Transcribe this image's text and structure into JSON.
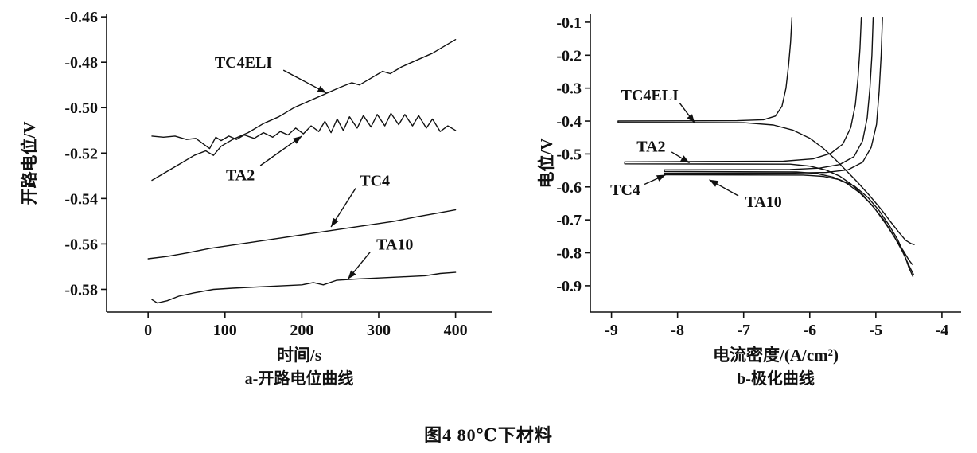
{
  "figure": {
    "caption": "图4  80℃下材料"
  },
  "chart_data": [
    {
      "type": "line",
      "title": "a-开路电位曲线",
      "xlabel": "时间/s",
      "ylabel": "开路电位/V",
      "xlim": [
        -54,
        447
      ],
      "ylim": [
        -0.59,
        -0.4589
      ],
      "xticks": [
        0,
        100,
        200,
        300,
        400
      ],
      "xtick_labels": [
        "0",
        "100",
        "200",
        "300",
        "400"
      ],
      "yticks": [
        -0.46,
        -0.48,
        -0.5,
        -0.52,
        -0.54,
        -0.56,
        -0.58
      ],
      "ytick_labels": [
        "-0.46",
        "-0.48",
        "-0.50",
        "-0.52",
        "-0.54",
        "-0.56",
        "-0.58"
      ],
      "grid": false,
      "legend": "none (inline arrow annotations)",
      "series": [
        {
          "name": "TC4ELI",
          "points": [
            [
              5,
              -0.532
            ],
            [
              20,
              -0.529
            ],
            [
              40,
              -0.525
            ],
            [
              60,
              -0.521
            ],
            [
              75,
              -0.519
            ],
            [
              85,
              -0.521
            ],
            [
              95,
              -0.517
            ],
            [
              110,
              -0.514
            ],
            [
              130,
              -0.511
            ],
            [
              150,
              -0.507
            ],
            [
              170,
              -0.504
            ],
            [
              190,
              -0.5
            ],
            [
              210,
              -0.497
            ],
            [
              230,
              -0.494
            ],
            [
              250,
              -0.491
            ],
            [
              265,
              -0.489
            ],
            [
              275,
              -0.49
            ],
            [
              290,
              -0.487
            ],
            [
              305,
              -0.484
            ],
            [
              315,
              -0.485
            ],
            [
              330,
              -0.482
            ],
            [
              350,
              -0.479
            ],
            [
              370,
              -0.476
            ],
            [
              385,
              -0.473
            ],
            [
              400,
              -0.47
            ]
          ]
        },
        {
          "name": "TA2",
          "points": [
            [
              5,
              -0.5125
            ],
            [
              20,
              -0.513
            ],
            [
              35,
              -0.5125
            ],
            [
              50,
              -0.514
            ],
            [
              62,
              -0.5135
            ],
            [
              72,
              -0.516
            ],
            [
              80,
              -0.518
            ],
            [
              88,
              -0.513
            ],
            [
              95,
              -0.5145
            ],
            [
              105,
              -0.5125
            ],
            [
              115,
              -0.514
            ],
            [
              125,
              -0.512
            ],
            [
              138,
              -0.5135
            ],
            [
              150,
              -0.511
            ],
            [
              162,
              -0.513
            ],
            [
              172,
              -0.5105
            ],
            [
              182,
              -0.512
            ],
            [
              192,
              -0.509
            ],
            [
              202,
              -0.5115
            ],
            [
              212,
              -0.508
            ],
            [
              222,
              -0.5105
            ],
            [
              230,
              -0.506
            ],
            [
              238,
              -0.511
            ],
            [
              246,
              -0.505
            ],
            [
              254,
              -0.51
            ],
            [
              262,
              -0.504
            ],
            [
              272,
              -0.509
            ],
            [
              280,
              -0.5035
            ],
            [
              290,
              -0.5085
            ],
            [
              298,
              -0.503
            ],
            [
              308,
              -0.508
            ],
            [
              316,
              -0.5025
            ],
            [
              326,
              -0.5075
            ],
            [
              334,
              -0.503
            ],
            [
              344,
              -0.508
            ],
            [
              352,
              -0.5035
            ],
            [
              362,
              -0.509
            ],
            [
              370,
              -0.505
            ],
            [
              380,
              -0.5105
            ],
            [
              390,
              -0.508
            ],
            [
              400,
              -0.51
            ]
          ]
        },
        {
          "name": "TC4",
          "points": [
            [
              0,
              -0.5665
            ],
            [
              25,
              -0.5655
            ],
            [
              50,
              -0.564
            ],
            [
              80,
              -0.562
            ],
            [
              110,
              -0.5605
            ],
            [
              140,
              -0.559
            ],
            [
              170,
              -0.5575
            ],
            [
              200,
              -0.556
            ],
            [
              230,
              -0.5545
            ],
            [
              260,
              -0.553
            ],
            [
              290,
              -0.5515
            ],
            [
              320,
              -0.55
            ],
            [
              350,
              -0.548
            ],
            [
              375,
              -0.5465
            ],
            [
              400,
              -0.545
            ]
          ]
        },
        {
          "name": "TA10",
          "points": [
            [
              5,
              -0.5845
            ],
            [
              12,
              -0.586
            ],
            [
              25,
              -0.585
            ],
            [
              40,
              -0.583
            ],
            [
              60,
              -0.5815
            ],
            [
              85,
              -0.58
            ],
            [
              110,
              -0.5795
            ],
            [
              140,
              -0.579
            ],
            [
              170,
              -0.5785
            ],
            [
              200,
              -0.578
            ],
            [
              215,
              -0.577
            ],
            [
              228,
              -0.578
            ],
            [
              245,
              -0.576
            ],
            [
              270,
              -0.5755
            ],
            [
              300,
              -0.575
            ],
            [
              330,
              -0.5745
            ],
            [
              360,
              -0.574
            ],
            [
              380,
              -0.573
            ],
            [
              400,
              -0.5725
            ]
          ]
        }
      ],
      "annotations": [
        {
          "text": "TC4ELI",
          "label": [
            124,
            -0.48
          ],
          "from": [
            176,
            -0.4835
          ],
          "to": [
            232,
            -0.4935
          ]
        },
        {
          "text": "TA2",
          "label": [
            120,
            -0.5295
          ],
          "from": [
            146,
            -0.5255
          ],
          "to": [
            200,
            -0.5125
          ]
        },
        {
          "text": "TC4",
          "label": [
            295,
            -0.532
          ],
          "from": [
            270,
            -0.5355
          ],
          "to": [
            238,
            -0.5525
          ]
        },
        {
          "text": "TA10",
          "label": [
            321,
            -0.56
          ],
          "from": [
            289,
            -0.5635
          ],
          "to": [
            260,
            -0.5755
          ]
        }
      ]
    },
    {
      "type": "line",
      "title": "b-极化曲线",
      "xlabel": "电流密度/(A/cm²)",
      "ylabel": "电位/V",
      "xlim": [
        -9.32,
        -3.71
      ],
      "ylim": [
        -0.98,
        -0.076
      ],
      "xticks": [
        -9,
        -8,
        -7,
        -6,
        -5,
        -4
      ],
      "xtick_labels": [
        "-9",
        "-8",
        "-7",
        "-6",
        "-5",
        "-4"
      ],
      "yticks": [
        -0.1,
        -0.2,
        -0.3,
        -0.4,
        -0.5,
        -0.6,
        -0.7,
        -0.8,
        -0.9
      ],
      "ytick_labels": [
        "-0.1",
        "-0.2",
        "-0.3",
        "-0.4",
        "-0.5",
        "-0.6",
        "-0.7",
        "-0.8",
        "-0.9"
      ],
      "grid": false,
      "legend": "none (inline arrow annotations)",
      "series": [
        {
          "name": "TC4ELI",
          "points": [
            [
              -6.27,
              -0.085
            ],
            [
              -6.29,
              -0.16
            ],
            [
              -6.32,
              -0.23
            ],
            [
              -6.36,
              -0.3
            ],
            [
              -6.42,
              -0.355
            ],
            [
              -6.52,
              -0.385
            ],
            [
              -6.7,
              -0.396
            ],
            [
              -7.1,
              -0.399
            ],
            [
              -8.9,
              -0.4
            ],
            [
              -8.9,
              -0.404
            ],
            [
              -7.0,
              -0.405
            ],
            [
              -6.55,
              -0.412
            ],
            [
              -6.25,
              -0.428
            ],
            [
              -6.0,
              -0.452
            ],
            [
              -5.8,
              -0.482
            ],
            [
              -5.62,
              -0.515
            ],
            [
              -5.45,
              -0.55
            ],
            [
              -5.28,
              -0.585
            ],
            [
              -5.1,
              -0.625
            ],
            [
              -4.92,
              -0.668
            ],
            [
              -4.78,
              -0.705
            ],
            [
              -4.65,
              -0.738
            ],
            [
              -4.55,
              -0.762
            ],
            [
              -4.47,
              -0.772
            ],
            [
              -4.42,
              -0.775
            ]
          ]
        },
        {
          "name": "TA2",
          "points": [
            [
              -5.22,
              -0.085
            ],
            [
              -5.24,
              -0.18
            ],
            [
              -5.27,
              -0.27
            ],
            [
              -5.31,
              -0.35
            ],
            [
              -5.38,
              -0.42
            ],
            [
              -5.5,
              -0.47
            ],
            [
              -5.68,
              -0.498
            ],
            [
              -5.95,
              -0.515
            ],
            [
              -6.4,
              -0.522
            ],
            [
              -8.8,
              -0.524
            ],
            [
              -8.8,
              -0.53
            ],
            [
              -6.3,
              -0.531
            ],
            [
              -6.0,
              -0.537
            ],
            [
              -5.75,
              -0.549
            ],
            [
              -5.55,
              -0.567
            ],
            [
              -5.37,
              -0.592
            ],
            [
              -5.18,
              -0.628
            ],
            [
              -5.0,
              -0.67
            ],
            [
              -4.84,
              -0.715
            ],
            [
              -4.7,
              -0.758
            ],
            [
              -4.58,
              -0.795
            ],
            [
              -4.5,
              -0.822
            ],
            [
              -4.45,
              -0.835
            ]
          ]
        },
        {
          "name": "TC4",
          "points": [
            [
              -5.04,
              -0.085
            ],
            [
              -5.06,
              -0.2
            ],
            [
              -5.09,
              -0.3
            ],
            [
              -5.13,
              -0.39
            ],
            [
              -5.2,
              -0.46
            ],
            [
              -5.33,
              -0.508
            ],
            [
              -5.55,
              -0.532
            ],
            [
              -5.85,
              -0.543
            ],
            [
              -6.3,
              -0.547
            ],
            [
              -8.2,
              -0.548
            ],
            [
              -8.2,
              -0.553
            ],
            [
              -6.2,
              -0.5545
            ],
            [
              -5.9,
              -0.559
            ],
            [
              -5.65,
              -0.57
            ],
            [
              -5.45,
              -0.588
            ],
            [
              -5.25,
              -0.617
            ],
            [
              -5.06,
              -0.655
            ],
            [
              -4.88,
              -0.7
            ],
            [
              -4.73,
              -0.748
            ],
            [
              -4.6,
              -0.795
            ],
            [
              -4.5,
              -0.838
            ],
            [
              -4.43,
              -0.866
            ]
          ]
        },
        {
          "name": "TA10",
          "points": [
            [
              -4.9,
              -0.085
            ],
            [
              -4.92,
              -0.2
            ],
            [
              -4.95,
              -0.31
            ],
            [
              -4.99,
              -0.41
            ],
            [
              -5.07,
              -0.48
            ],
            [
              -5.2,
              -0.525
            ],
            [
              -5.42,
              -0.548
            ],
            [
              -5.75,
              -0.556
            ],
            [
              -6.3,
              -0.558
            ],
            [
              -8.2,
              -0.558
            ],
            [
              -8.2,
              -0.563
            ],
            [
              -6.1,
              -0.564
            ],
            [
              -5.8,
              -0.568
            ],
            [
              -5.55,
              -0.578
            ],
            [
              -5.32,
              -0.598
            ],
            [
              -5.12,
              -0.632
            ],
            [
              -4.95,
              -0.672
            ],
            [
              -4.8,
              -0.716
            ],
            [
              -4.67,
              -0.76
            ],
            [
              -4.57,
              -0.805
            ],
            [
              -4.5,
              -0.845
            ],
            [
              -4.44,
              -0.872
            ]
          ]
        }
      ],
      "annotations": [
        {
          "text": "TC4ELI",
          "label": [
            -8.42,
            -0.32
          ],
          "from": [
            -7.97,
            -0.345
          ],
          "to": [
            -7.74,
            -0.406
          ]
        },
        {
          "text": "TA2",
          "label": [
            -8.4,
            -0.476
          ],
          "from": [
            -8.09,
            -0.494
          ],
          "to": [
            -7.82,
            -0.527
          ]
        },
        {
          "text": "TC4",
          "label": [
            -8.79,
            -0.608
          ],
          "from": [
            -8.5,
            -0.592
          ],
          "to": [
            -8.18,
            -0.563
          ]
        },
        {
          "text": "TA10",
          "label": [
            -6.7,
            -0.644
          ],
          "from": [
            -7.08,
            -0.627
          ],
          "to": [
            -7.52,
            -0.578
          ]
        }
      ]
    }
  ]
}
